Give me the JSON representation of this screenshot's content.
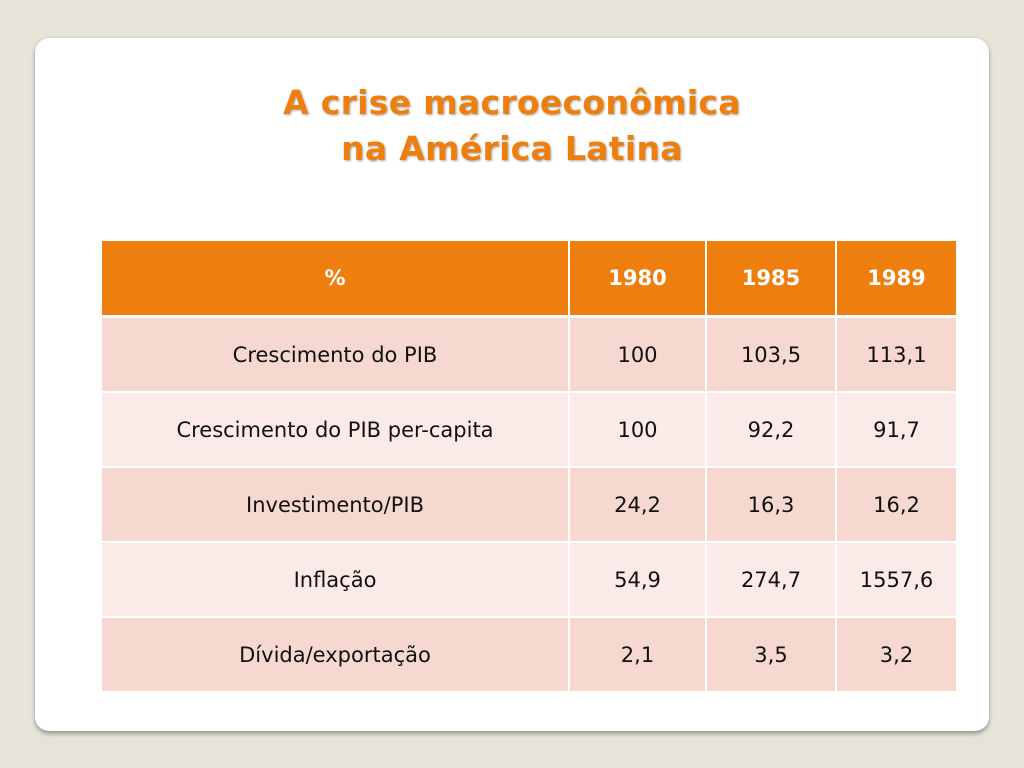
{
  "slide": {
    "title_line1": "A crise macroeconômica",
    "title_line2": "na América Latina"
  },
  "table": {
    "headers": [
      "%",
      "1980",
      "1985",
      "1989"
    ],
    "rows": [
      [
        "Crescimento do PIB",
        "100",
        "103,5",
        "113,1"
      ],
      [
        "Crescimento do PIB per-capita",
        "100",
        "92,2",
        "91,7"
      ],
      [
        "Investimento/PIB",
        "24,2",
        "16,3",
        "16,2"
      ],
      [
        "Inflação",
        "54,9",
        "274,7",
        "1557,6"
      ],
      [
        "Dívida/exportação",
        "2,1",
        "3,5",
        "3,2"
      ]
    ]
  },
  "colors": {
    "accent": "#ee7f0f",
    "row_odd": "#f6d8d0",
    "row_even": "#fbebe8",
    "background": "#e6e3d9"
  }
}
